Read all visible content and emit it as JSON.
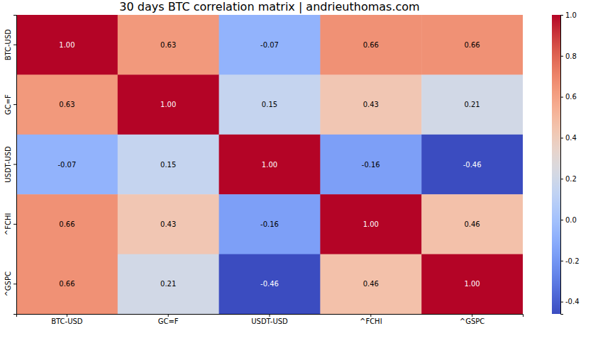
{
  "chart_data": {
    "type": "heatmap",
    "title": "30 days BTC correlation matrix | andrieuthomas.com",
    "x": [
      "BTC-USD",
      "GC=F",
      "USDT-USD",
      "^FCHI",
      "^GSPC"
    ],
    "y": [
      "BTC-USD",
      "GC=F",
      "USDT-USD",
      "^FCHI",
      "^GSPC"
    ],
    "cells": [
      [
        1.0,
        0.63,
        -0.07,
        0.66,
        0.66
      ],
      [
        0.63,
        1.0,
        0.15,
        0.43,
        0.21
      ],
      [
        -0.07,
        0.15,
        1.0,
        -0.16,
        -0.46
      ],
      [
        0.66,
        0.43,
        -0.16,
        1.0,
        0.46
      ],
      [
        0.66,
        0.21,
        -0.46,
        0.46,
        1.0
      ]
    ],
    "value_labels": [
      [
        "1.00",
        "0.63",
        "-0.07",
        "0.66",
        "0.66"
      ],
      [
        "0.63",
        "1.00",
        "0.15",
        "0.43",
        "0.21"
      ],
      [
        "-0.07",
        "0.15",
        "1.00",
        "-0.16",
        "-0.46"
      ],
      [
        "0.66",
        "0.43",
        "-0.16",
        "1.00",
        "0.46"
      ],
      [
        "0.66",
        "0.21",
        "-0.46",
        "0.46",
        "1.00"
      ]
    ],
    "data_labels": true,
    "colorbar_range": [
      -0.46,
      1.0
    ],
    "colorbar_ticks": [
      {
        "value": -0.4,
        "label": "-0.4"
      },
      {
        "value": -0.2,
        "label": "-0.2"
      },
      {
        "value": 0.0,
        "label": "0.0"
      },
      {
        "value": 0.2,
        "label": "0.2"
      },
      {
        "value": 0.4,
        "label": "0.4"
      },
      {
        "value": 0.6,
        "label": "0.6"
      },
      {
        "value": 0.8,
        "label": "0.8"
      },
      {
        "value": 1.0,
        "label": "1.0"
      }
    ]
  }
}
